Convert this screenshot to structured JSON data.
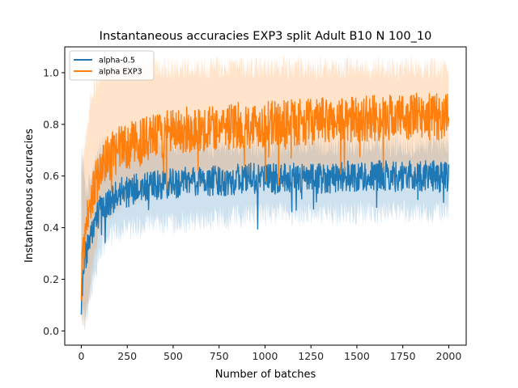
{
  "chart_data": {
    "type": "line",
    "title": "Instantaneous accuracies EXP3 split Adult B10 N 100_10",
    "xlabel": "Number of batches",
    "ylabel": "Instantaneous accuracies",
    "xlim": [
      -90,
      2095
    ],
    "ylim": [
      -0.055,
      1.1
    ],
    "xticks": [
      0,
      250,
      500,
      750,
      1000,
      1250,
      1500,
      1750,
      2000
    ],
    "yticks": [
      0.0,
      0.2,
      0.4,
      0.6,
      0.8,
      1.0
    ],
    "grid": false,
    "legend": {
      "placement": "top-left",
      "entries": [
        "alpha-0.5",
        "alpha EXP3"
      ]
    },
    "series": [
      {
        "name": "alpha-0.5",
        "color": "#1f77b4",
        "points": [
          [
            0,
            0.1
          ],
          [
            10,
            0.22
          ],
          [
            25,
            0.3
          ],
          [
            50,
            0.38
          ],
          [
            100,
            0.46
          ],
          [
            150,
            0.5
          ],
          [
            200,
            0.53
          ],
          [
            300,
            0.55
          ],
          [
            400,
            0.56
          ],
          [
            500,
            0.57
          ],
          [
            600,
            0.58
          ],
          [
            750,
            0.58
          ],
          [
            900,
            0.59
          ],
          [
            1000,
            0.59
          ],
          [
            1250,
            0.59
          ],
          [
            1500,
            0.6
          ],
          [
            1750,
            0.6
          ],
          [
            2000,
            0.6
          ]
        ],
        "band": [
          [
            0,
            0.05,
            0.7
          ],
          [
            25,
            0.05,
            0.55
          ],
          [
            50,
            0.15,
            0.58
          ],
          [
            100,
            0.3,
            0.7
          ],
          [
            150,
            0.36,
            0.72
          ],
          [
            200,
            0.38,
            0.72
          ],
          [
            300,
            0.4,
            0.72
          ],
          [
            500,
            0.42,
            0.72
          ],
          [
            750,
            0.44,
            0.72
          ],
          [
            1000,
            0.45,
            0.72
          ],
          [
            1250,
            0.45,
            0.72
          ],
          [
            1500,
            0.46,
            0.72
          ],
          [
            1750,
            0.46,
            0.72
          ],
          [
            2000,
            0.46,
            0.72
          ]
        ],
        "noise": 0.06
      },
      {
        "name": "alpha EXP3",
        "color": "#ff7f0e",
        "points": [
          [
            0,
            0.2
          ],
          [
            10,
            0.3
          ],
          [
            25,
            0.4
          ],
          [
            50,
            0.5
          ],
          [
            100,
            0.62
          ],
          [
            150,
            0.67
          ],
          [
            200,
            0.7
          ],
          [
            300,
            0.73
          ],
          [
            400,
            0.75
          ],
          [
            500,
            0.77
          ],
          [
            600,
            0.78
          ],
          [
            750,
            0.79
          ],
          [
            1000,
            0.8
          ],
          [
            1250,
            0.81
          ],
          [
            1500,
            0.82
          ],
          [
            1750,
            0.83
          ],
          [
            2000,
            0.83
          ]
        ],
        "band": [
          [
            0,
            0.05,
            0.6
          ],
          [
            25,
            0.05,
            0.75
          ],
          [
            50,
            0.2,
            0.9
          ],
          [
            100,
            0.4,
            1.0
          ],
          [
            150,
            0.45,
            1.02
          ],
          [
            200,
            0.5,
            1.02
          ],
          [
            400,
            0.55,
            1.02
          ],
          [
            600,
            0.58,
            1.02
          ],
          [
            1000,
            0.6,
            1.02
          ],
          [
            1500,
            0.62,
            1.02
          ],
          [
            2000,
            0.62,
            1.02
          ]
        ],
        "noise": 0.09
      }
    ]
  }
}
